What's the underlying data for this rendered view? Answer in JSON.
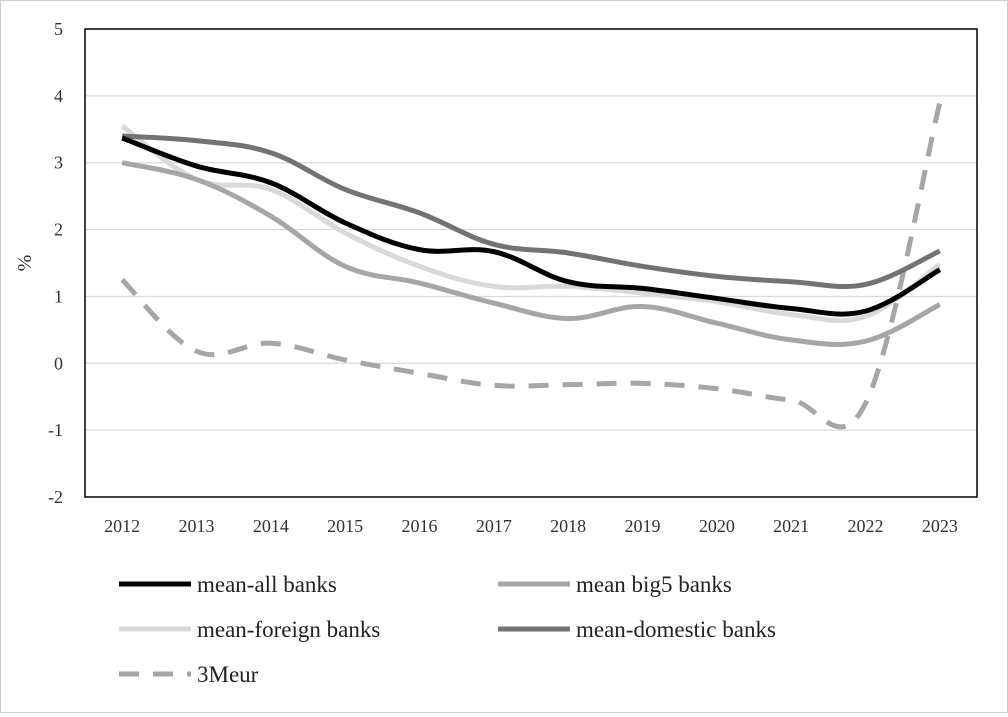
{
  "chart_data": {
    "type": "line",
    "title": "",
    "xlabel": "",
    "ylabel": "%",
    "ylim": [
      -2,
      5
    ],
    "yticks": [
      -2,
      -1,
      0,
      1,
      2,
      3,
      4,
      5
    ],
    "x": [
      "2012",
      "2013",
      "2014",
      "2015",
      "2016",
      "2017",
      "2018",
      "2019",
      "2020",
      "2021",
      "2022",
      "2023"
    ],
    "grid": "horizontal",
    "legend_position": "bottom",
    "series": [
      {
        "name": "mean-all banks",
        "color": "#000000",
        "dash": "solid",
        "values": [
          3.37,
          2.95,
          2.7,
          2.1,
          1.7,
          1.67,
          1.22,
          1.12,
          0.97,
          0.82,
          0.78,
          1.4
        ]
      },
      {
        "name": "mean big5 banks",
        "color": "#a6a6a6",
        "dash": "solid",
        "values": [
          3.0,
          2.75,
          2.2,
          1.45,
          1.2,
          0.9,
          0.67,
          0.85,
          0.6,
          0.35,
          0.33,
          0.88
        ]
      },
      {
        "name": "mean-foreign banks",
        "color": "#d9d9d9",
        "dash": "solid",
        "values": [
          3.55,
          2.75,
          2.6,
          1.95,
          1.45,
          1.15,
          1.15,
          1.05,
          0.92,
          0.73,
          0.7,
          1.48
        ]
      },
      {
        "name": "mean-domestic banks",
        "color": "#737373",
        "dash": "solid",
        "values": [
          3.4,
          3.33,
          3.15,
          2.6,
          2.25,
          1.78,
          1.65,
          1.45,
          1.3,
          1.22,
          1.18,
          1.68
        ]
      },
      {
        "name": "3Meur",
        "color": "#a6a6a6",
        "dash": "dashed",
        "values": [
          1.25,
          0.18,
          0.3,
          0.05,
          -0.15,
          -0.33,
          -0.32,
          -0.3,
          -0.38,
          -0.55,
          -0.6,
          3.9
        ]
      }
    ]
  }
}
